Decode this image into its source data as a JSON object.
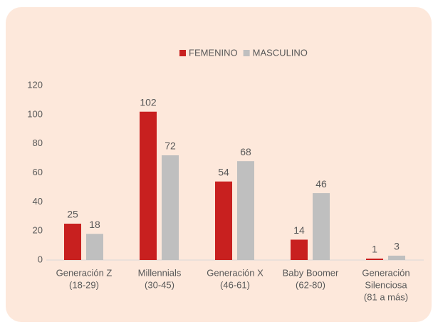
{
  "chart_data": {
    "type": "bar",
    "categories": [
      [
        "Generación Z",
        "(18-29)"
      ],
      [
        "Millennials",
        "(30-45)"
      ],
      [
        "Generación X",
        "(46-61)"
      ],
      [
        "Baby Boomer",
        "(62-80)"
      ],
      [
        "Generación",
        "Silenciosa",
        "(81 a más)"
      ]
    ],
    "series": [
      {
        "name": "FEMENINO",
        "color": "#c8201f",
        "values": [
          25,
          102,
          54,
          14,
          1
        ]
      },
      {
        "name": "MASCULINO",
        "color": "#bfbfbf",
        "values": [
          18,
          72,
          68,
          46,
          3
        ]
      }
    ],
    "ylim": [
      0,
      120
    ],
    "yticks": [
      0,
      20,
      40,
      60,
      80,
      100,
      120
    ],
    "grid": false,
    "legend": "top",
    "data_labels": true
  }
}
